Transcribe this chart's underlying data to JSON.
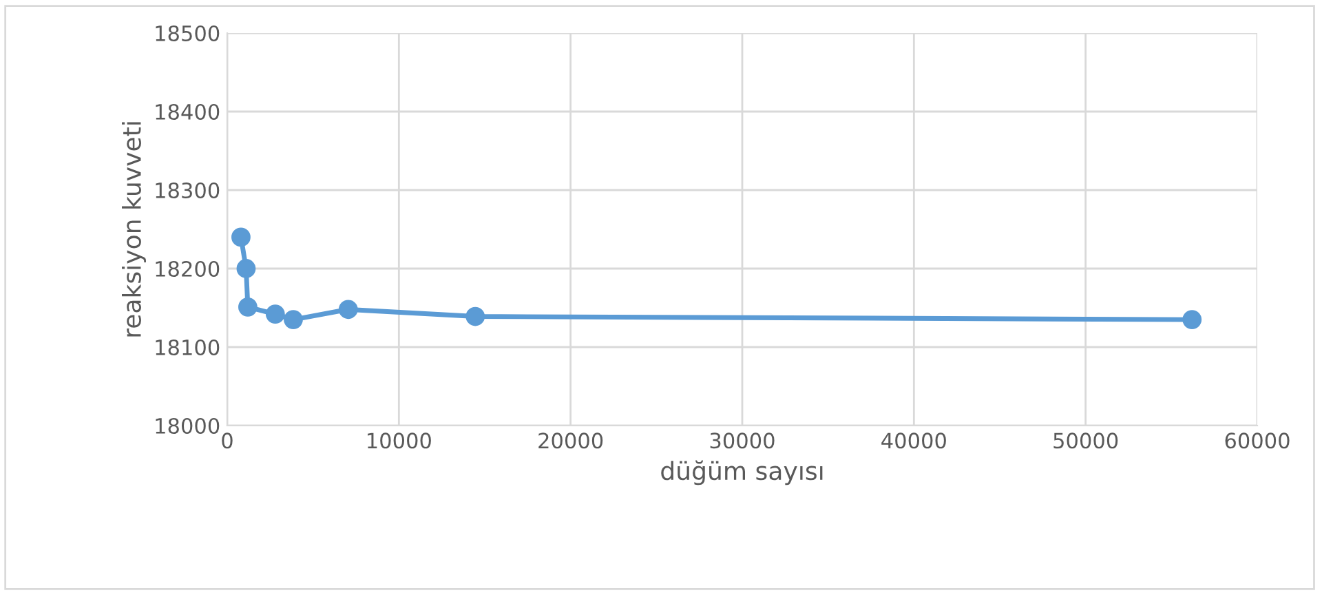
{
  "chart_data": {
    "type": "line",
    "xlabel": "düğüm sayısı",
    "ylabel": "reaksiyon kuvveti",
    "x": [
      800,
      1100,
      1200,
      2800,
      3850,
      7050,
      14450,
      56200
    ],
    "series": [
      {
        "color": "#5b9bd5",
        "values": [
          18240,
          18200,
          18151,
          18142,
          18135,
          18148,
          18139,
          18135
        ]
      }
    ],
    "xlim": [
      0,
      60000
    ],
    "xticks": [
      0,
      10000,
      20000,
      30000,
      40000,
      50000,
      60000
    ],
    "ylim": [
      18000,
      18500
    ],
    "yticks": [
      18000,
      18100,
      18200,
      18300,
      18400,
      18500
    ],
    "grid": true,
    "marker": "circle",
    "line_style": "solid"
  }
}
